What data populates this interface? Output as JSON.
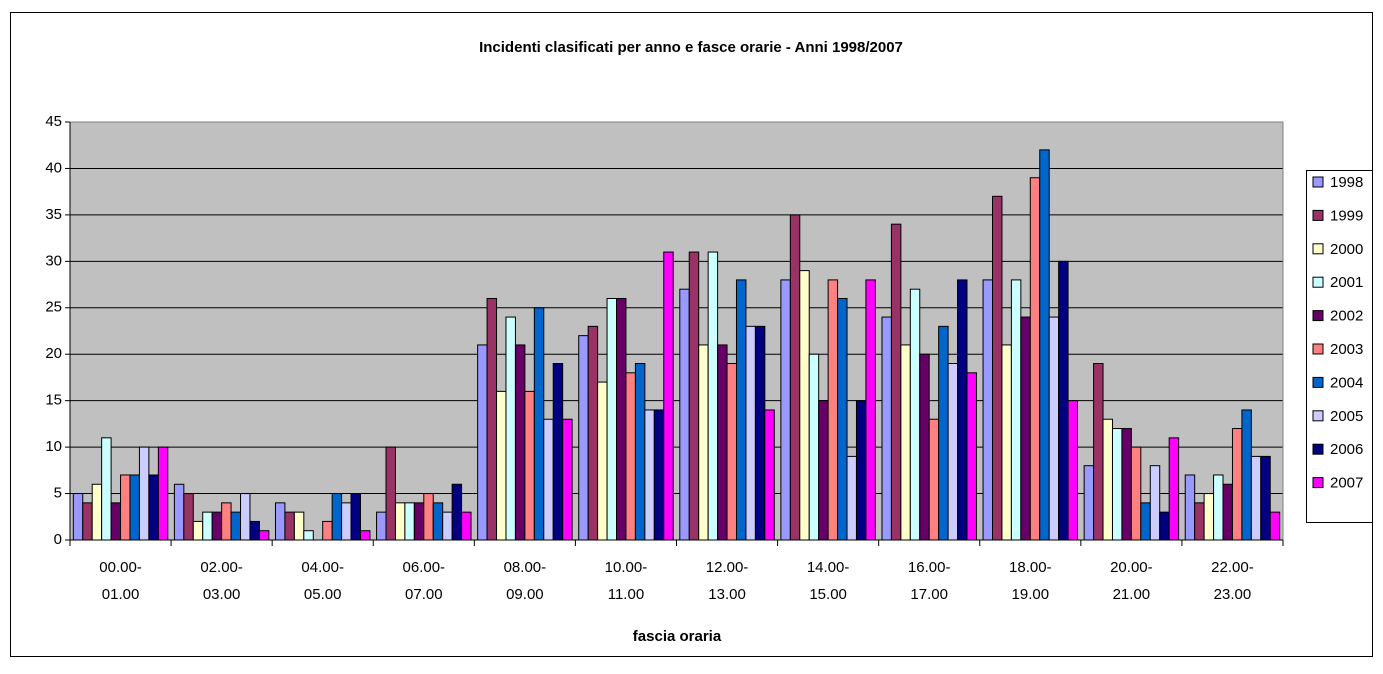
{
  "chart_data": {
    "type": "bar",
    "title": "Incidenti clasificati per anno e fasce orarie - Anni 1998/2007",
    "x_label": "fascia oraria",
    "categories": [
      "00.00- 01.00",
      "02.00- 03.00",
      "04.00- 05.00",
      "06.00- 07.00",
      "08.00- 09.00",
      "10.00- 11.00",
      "12.00- 13.00",
      "14.00- 15.00",
      "16.00- 17.00",
      "18.00- 19.00",
      "20.00- 21.00",
      "22.00- 23.00"
    ],
    "series": [
      {
        "name": "1998",
        "color": "#9999ff",
        "values": [
          5,
          6,
          4,
          3,
          21,
          22,
          27,
          28,
          24,
          28,
          8,
          7
        ]
      },
      {
        "name": "1999",
        "color": "#993366",
        "values": [
          4,
          5,
          3,
          10,
          26,
          23,
          31,
          35,
          34,
          37,
          19,
          4
        ]
      },
      {
        "name": "2000",
        "color": "#ffffcc",
        "values": [
          6,
          2,
          3,
          4,
          16,
          17,
          21,
          29,
          21,
          21,
          13,
          5
        ]
      },
      {
        "name": "2001",
        "color": "#ccffff",
        "values": [
          11,
          3,
          1,
          4,
          24,
          26,
          31,
          20,
          27,
          28,
          12,
          7
        ]
      },
      {
        "name": "2002",
        "color": "#660066",
        "values": [
          4,
          3,
          0,
          4,
          21,
          26,
          21,
          15,
          20,
          24,
          12,
          6
        ]
      },
      {
        "name": "2003",
        "color": "#ff8080",
        "values": [
          7,
          4,
          2,
          5,
          16,
          18,
          19,
          28,
          13,
          39,
          10,
          12
        ]
      },
      {
        "name": "2004",
        "color": "#0066cc",
        "values": [
          7,
          3,
          5,
          4,
          25,
          19,
          28,
          26,
          23,
          42,
          4,
          14
        ]
      },
      {
        "name": "2005",
        "color": "#ccccff",
        "values": [
          10,
          5,
          4,
          3,
          13,
          14,
          23,
          9,
          19,
          24,
          8,
          9
        ]
      },
      {
        "name": "2006",
        "color": "#000080",
        "values": [
          7,
          2,
          5,
          6,
          19,
          14,
          23,
          15,
          28,
          30,
          3,
          9
        ]
      },
      {
        "name": "2007",
        "color": "#ff00ff",
        "values": [
          10,
          1,
          1,
          3,
          13,
          31,
          14,
          28,
          18,
          15,
          11,
          3
        ]
      }
    ],
    "ylim": [
      0,
      45
    ],
    "yticks": [
      0,
      5,
      10,
      15,
      20,
      25,
      30,
      35,
      40,
      45
    ],
    "grid": true,
    "plot_background": "#c0c0c0",
    "legend": "right"
  }
}
